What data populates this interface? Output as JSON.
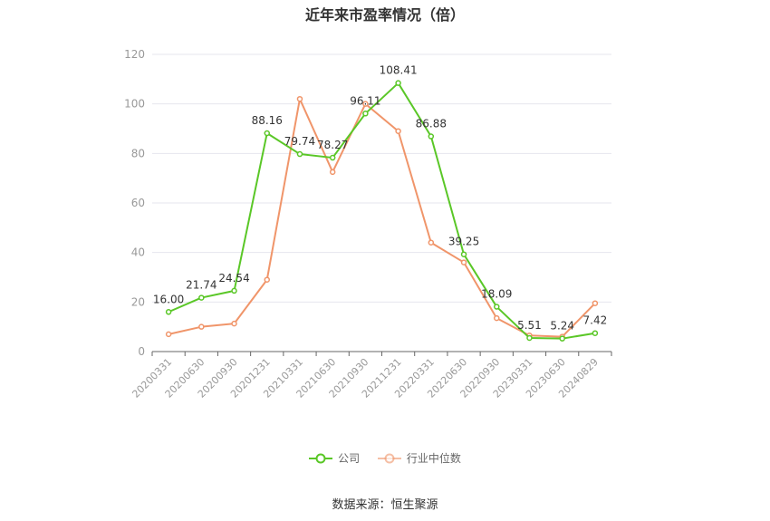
{
  "chart_data": {
    "type": "line",
    "title": "近年来市盈率情况（倍）",
    "categories": [
      "20200331",
      "20200630",
      "20200930",
      "20201231",
      "20210331",
      "20210630",
      "20210930",
      "20211231",
      "20220331",
      "20220630",
      "20220930",
      "20230331",
      "20230630",
      "20240829"
    ],
    "series": [
      {
        "name": "公司",
        "color": "#5ac727",
        "values": [
          16.0,
          21.74,
          24.54,
          88.16,
          79.74,
          78.27,
          96.11,
          108.41,
          86.88,
          39.25,
          18.09,
          5.51,
          5.24,
          7.42
        ],
        "labels": [
          "16.00",
          "21.74",
          "24.54",
          "88.16",
          "79.74",
          "78.27",
          "96.11",
          "108.41",
          "86.88",
          "39.25",
          "18.09",
          "5.51",
          "5.24",
          "7.42"
        ]
      },
      {
        "name": "行业中位数",
        "color": "#f0956a",
        "values": [
          7.0,
          10.0,
          11.3,
          29.0,
          102.0,
          72.5,
          100.0,
          89.0,
          44.0,
          36.0,
          13.5,
          6.5,
          6.0,
          19.5
        ]
      }
    ],
    "ylim": [
      0,
      120
    ],
    "yticks": [
      0,
      20,
      40,
      60,
      80,
      100,
      120
    ],
    "grid": true,
    "legend": "bottom"
  },
  "source": "数据来源：恒生聚源"
}
